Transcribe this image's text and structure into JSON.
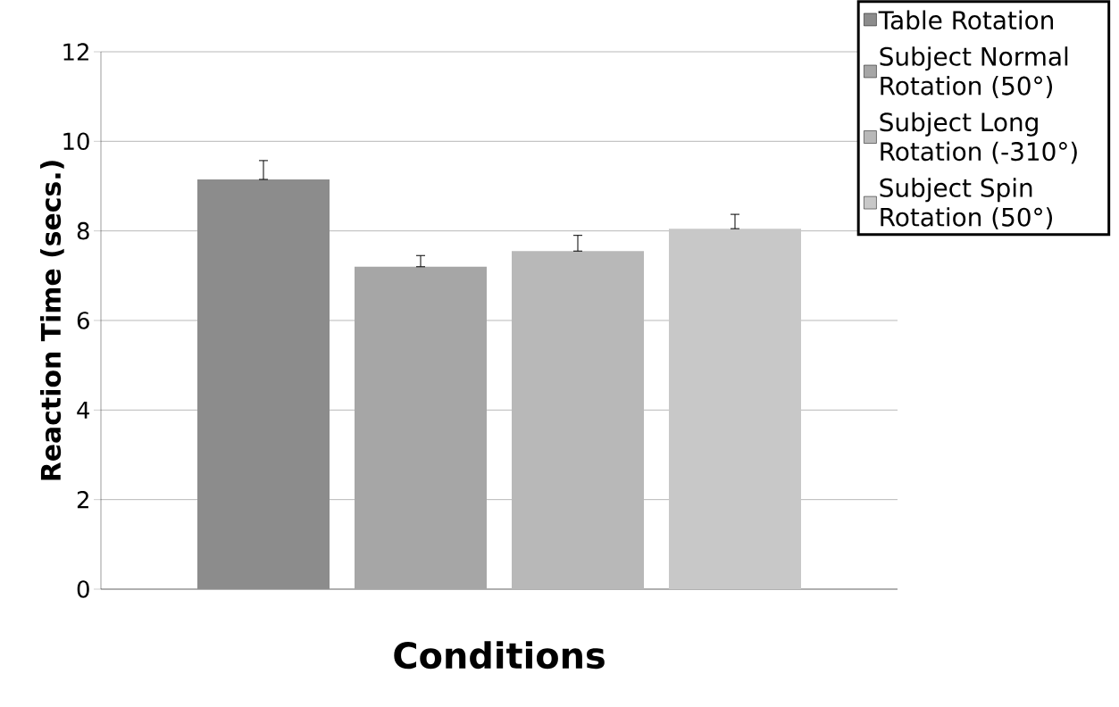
{
  "chart_data": {
    "type": "bar",
    "xlabel": "Conditions",
    "ylabel": "Reaction Time (secs.)",
    "categories": [
      null
    ],
    "series": [
      {
        "name": "Table Rotation",
        "color": "#8c8c8c",
        "values": [
          9.15
        ],
        "errors": [
          [
            9.15,
            9.57
          ]
        ]
      },
      {
        "name": "Subject Normal Rotation (50°)",
        "color": "#a6a6a6",
        "values": [
          7.2
        ],
        "errors": [
          [
            7.2,
            7.45
          ]
        ]
      },
      {
        "name": "Subject Long Rotation (-310°)",
        "color": "#b8b8b8",
        "values": [
          7.55
        ],
        "errors": [
          [
            7.55,
            7.9
          ]
        ]
      },
      {
        "name": "Subject Spin Rotation (50°)",
        "color": "#c8c8c8",
        "values": [
          8.05
        ],
        "errors": [
          [
            8.05,
            8.37
          ]
        ]
      }
    ],
    "ylim": [
      0,
      12
    ],
    "yticks": [
      0,
      2,
      4,
      6,
      8,
      10,
      12
    ],
    "grid": "y",
    "legend": "top right"
  }
}
